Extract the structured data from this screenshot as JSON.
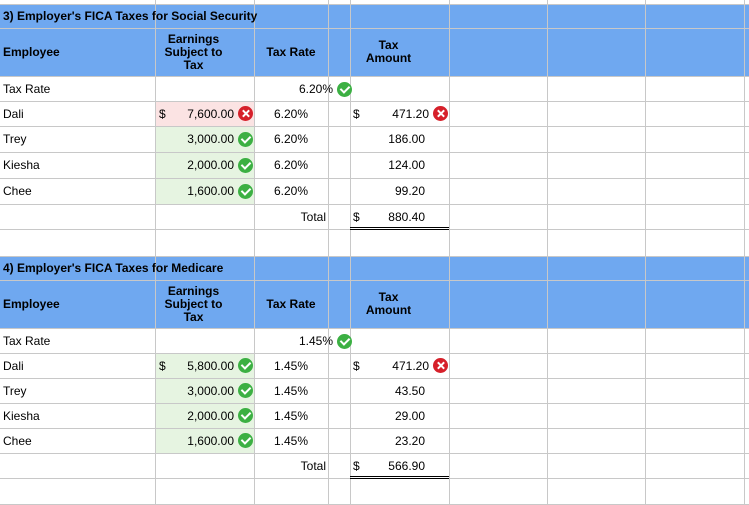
{
  "ss": {
    "title": "3) Employer's FICA Taxes for Social Security",
    "headers": {
      "employee": "Employee",
      "earnings_1": "Earnings",
      "earnings_2": "Subject to",
      "earnings_3": "Tax",
      "tax_rate": "Tax Rate",
      "amount_1": "Tax",
      "amount_2": "Amount"
    },
    "rate_label": "Tax Rate",
    "rate_value": "6.20%",
    "rows": [
      {
        "name": "Dali",
        "earnings": "7,600.00",
        "earnings_status": "incorrect",
        "rate": "6.20%",
        "amount": "471.20",
        "amount_status": "incorrect"
      },
      {
        "name": "Trey",
        "earnings": "3,000.00",
        "earnings_status": "correct",
        "rate": "6.20%",
        "amount": "186.00"
      },
      {
        "name": "Kiesha",
        "earnings": "2,000.00",
        "earnings_status": "correct",
        "rate": "6.20%",
        "amount": "124.00"
      },
      {
        "name": "Chee",
        "earnings": "1,600.00",
        "earnings_status": "correct",
        "rate": "6.20%",
        "amount": "99.20"
      }
    ],
    "total_label": "Total",
    "total_value": "880.40"
  },
  "med": {
    "title": "4) Employer's FICA Taxes for Medicare",
    "headers": {
      "employee": "Employee",
      "earnings_1": "Earnings",
      "earnings_2": "Subject to",
      "earnings_3": "Tax",
      "tax_rate": "Tax Rate",
      "amount_1": "Tax",
      "amount_2": "Amount"
    },
    "rate_label": "Tax Rate",
    "rate_value": "1.45%",
    "rows": [
      {
        "name": "Dali",
        "earnings": "5,800.00",
        "earnings_status": "correct",
        "rate": "1.45%",
        "amount": "471.20",
        "amount_status": "incorrect"
      },
      {
        "name": "Trey",
        "earnings": "3,000.00",
        "earnings_status": "correct",
        "rate": "1.45%",
        "amount": "43.50"
      },
      {
        "name": "Kiesha",
        "earnings": "2,000.00",
        "earnings_status": "correct",
        "rate": "1.45%",
        "amount": "29.00"
      },
      {
        "name": "Chee",
        "earnings": "1,600.00",
        "earnings_status": "correct",
        "rate": "1.45%",
        "amount": "23.20"
      }
    ],
    "total_label": "Total",
    "total_value": "566.90"
  },
  "currency_symbol": "$",
  "colors": {
    "header_band": "#6fa8f0",
    "correct": "#3cb043",
    "incorrect": "#d6202a"
  }
}
